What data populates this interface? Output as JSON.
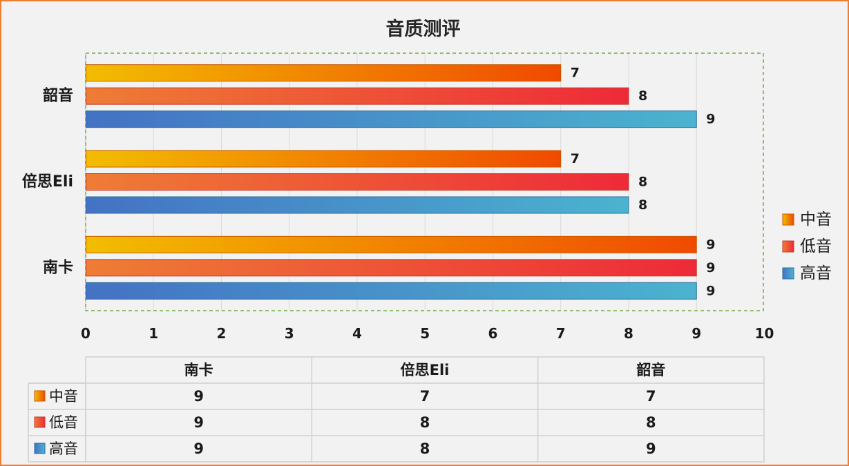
{
  "chart_data": {
    "type": "bar",
    "orientation": "horizontal",
    "title": "音质测评",
    "categories": [
      "南卡",
      "倍思Eli",
      "韶音"
    ],
    "series": [
      {
        "name": "中音",
        "values": [
          9,
          7,
          7
        ],
        "color_start": "#f2bd00",
        "color_end": "#f04a00",
        "stroke": "#c25a00"
      },
      {
        "name": "低音",
        "values": [
          9,
          8,
          8
        ],
        "color_start": "#ee7d35",
        "color_end": "#ee2a38",
        "stroke": "#c0392b"
      },
      {
        "name": "高音",
        "values": [
          9,
          8,
          9
        ],
        "color_start": "#4472c4",
        "color_end": "#4bb3cf",
        "stroke": "#2e6e9e"
      }
    ],
    "x_ticks": [
      "0",
      "1",
      "2",
      "3",
      "4",
      "5",
      "6",
      "7",
      "8",
      "9",
      "10"
    ],
    "xlim": [
      0,
      10
    ],
    "grid": true,
    "legend_position": "right",
    "data_table": true,
    "plot_area_border": "#70ad47",
    "frame_border": "#ed7d31"
  }
}
